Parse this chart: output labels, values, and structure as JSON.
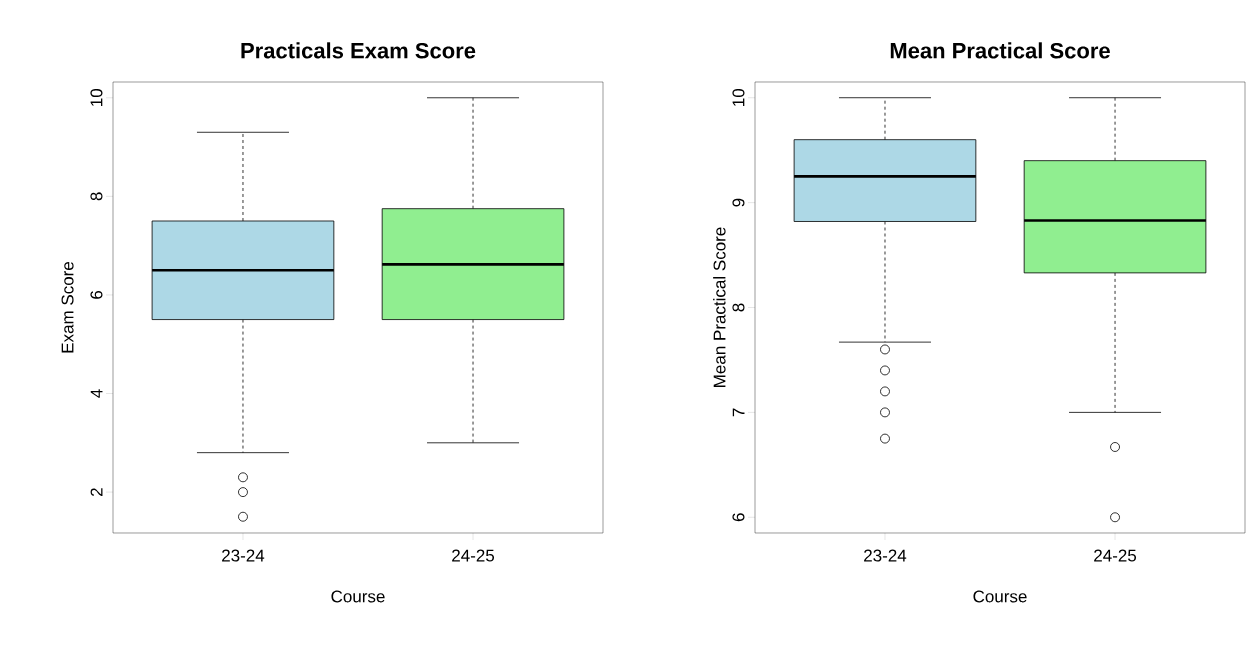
{
  "chart_data": [
    {
      "type": "box",
      "title": "Practicals Exam Score",
      "xlabel": "Course",
      "ylabel": "Exam Score",
      "categories": [
        "23-24",
        "24-25"
      ],
      "colors": [
        "#add8e6",
        "#90ee90"
      ],
      "boxes": [
        {
          "low": 2.8,
          "q1": 5.5,
          "median": 6.5,
          "q3": 7.5,
          "high": 9.3,
          "outliers": [
            2.3,
            2.0,
            1.5
          ]
        },
        {
          "low": 3.0,
          "q1": 5.5,
          "median": 6.62,
          "q3": 7.75,
          "high": 10.0
        }
      ],
      "ylim": [
        1.17,
        10.32
      ],
      "yticks": [
        2,
        4,
        6,
        8,
        10
      ],
      "grid": false,
      "line_style": "dashed"
    },
    {
      "type": "box",
      "title": "Mean Practical Score",
      "xlabel": "Course",
      "ylabel": "Mean Practical Score",
      "categories": [
        "23-24",
        "24-25"
      ],
      "colors": [
        "#add8e6",
        "#90ee90"
      ],
      "boxes": [
        {
          "low": 7.67,
          "q1": 8.82,
          "median": 9.25,
          "q3": 9.6,
          "high": 10.0,
          "outliers": [
            7.6,
            7.4,
            7.2,
            7.0,
            6.75
          ]
        },
        {
          "low": 7.0,
          "q1": 8.33,
          "median": 8.83,
          "q3": 9.4,
          "high": 10.0,
          "outliers": [
            6.67,
            6.0
          ]
        }
      ],
      "ylim": [
        5.85,
        10.15
      ],
      "yticks": [
        6,
        7,
        8,
        9,
        10
      ],
      "grid": false,
      "line_style": "dashed"
    }
  ]
}
